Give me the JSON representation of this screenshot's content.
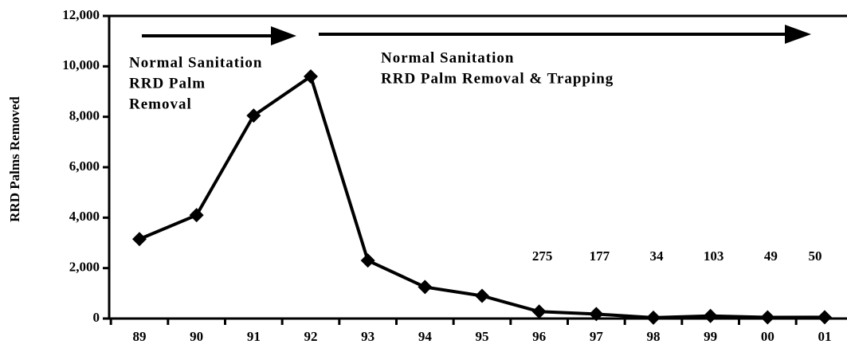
{
  "chart_data": {
    "type": "line",
    "ylabel": "RRD Palms Removed",
    "categories": [
      "89",
      "90",
      "91",
      "92",
      "93",
      "94",
      "95",
      "96",
      "97",
      "98",
      "99",
      "00",
      "01"
    ],
    "values": [
      3150,
      4100,
      8050,
      9600,
      2300,
      1250,
      900,
      275,
      177,
      34,
      103,
      49,
      50
    ],
    "value_labels": [
      null,
      null,
      null,
      null,
      null,
      null,
      null,
      "275",
      "177",
      "34",
      "103",
      "49",
      "50"
    ],
    "color": "#000000",
    "ylim": [
      0,
      12000
    ],
    "yticks": [
      0,
      {
        "value": 2000,
        "label": "2,000"
      },
      {
        "value": 4000,
        "label": "4,000"
      },
      {
        "value": 6000,
        "label": "6,000"
      },
      {
        "value": 8000,
        "label": "8,000"
      },
      {
        "value": 10000,
        "label": "10,000"
      },
      {
        "value": 12000,
        "label": "12,000"
      }
    ],
    "annotations": [
      {
        "lines": [
          "Normal Sanitation",
          "RRD Palm",
          "Removal"
        ]
      },
      {
        "lines": [
          "Normal Sanitation",
          "RRD Palm Removal & Trapping"
        ]
      }
    ]
  }
}
